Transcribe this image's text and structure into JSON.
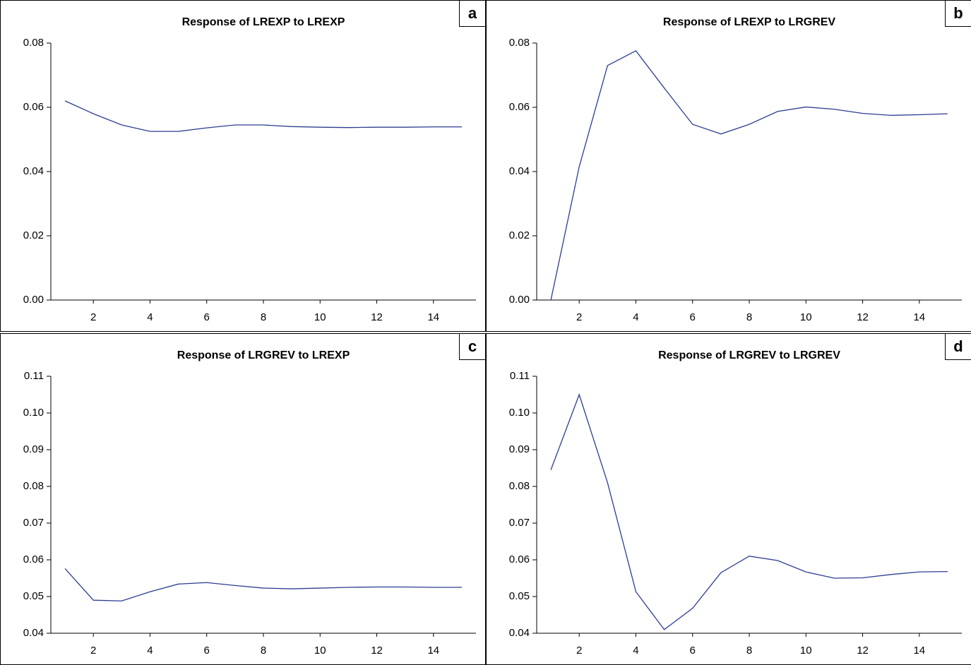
{
  "chart_data": [
    {
      "type": "line",
      "title": "Response of LREXP to LREXP",
      "panel_label": "a",
      "categories": [
        null,
        2,
        null,
        4,
        null,
        6,
        null,
        8,
        null,
        10,
        null,
        12,
        null,
        14,
        null
      ],
      "values": [
        0.062,
        0.058,
        0.0545,
        0.0525,
        0.0525,
        0.0536,
        0.0545,
        0.0545,
        0.054,
        0.0538,
        0.0537,
        0.0538,
        0.0538,
        0.0539,
        0.0539
      ],
      "color": "#2e3d91",
      "ylim": [
        0,
        0.08
      ],
      "yticks": [
        {
          "value": 0,
          "label": "0.00"
        },
        0.02,
        0.04,
        0.06,
        0.08
      ]
    },
    {
      "type": "line",
      "title": "Response of LREXP to LRGREV",
      "panel_label": "b",
      "categories": [
        null,
        2,
        null,
        4,
        null,
        6,
        null,
        8,
        null,
        10,
        null,
        12,
        null,
        14,
        null
      ],
      "values": [
        0,
        0.0415,
        0.073,
        0.0776,
        0.066,
        0.0547,
        0.0517,
        0.0547,
        0.0587,
        0.0601,
        0.0594,
        0.0581,
        0.0575,
        0.0577,
        0.058
      ],
      "color": "#2e3d91",
      "ylim": [
        0,
        0.08
      ],
      "yticks": [
        {
          "value": 0,
          "label": "0.00"
        },
        0.02,
        0.04,
        0.06,
        0.08
      ]
    },
    {
      "type": "line",
      "title": "Response of LRGREV to LREXP",
      "panel_label": "c",
      "categories": [
        null,
        2,
        null,
        4,
        null,
        6,
        null,
        8,
        null,
        10,
        null,
        12,
        null,
        14,
        null
      ],
      "values": [
        0.0576,
        0.049,
        0.0488,
        0.0513,
        0.0534,
        0.0538,
        0.053,
        0.0523,
        0.0521,
        0.0523,
        0.0525,
        0.0526,
        0.0526,
        0.0525,
        0.0525
      ],
      "color": "#2e3d91",
      "ylim": [
        0.04,
        0.11
      ],
      "yticks": [
        0.04,
        0.05,
        0.06,
        0.07,
        0.08,
        0.09,
        {
          "value": 0.1,
          "label": "0.10"
        },
        0.11
      ]
    },
    {
      "type": "line",
      "title": "Response of LRGREV to LRGREV",
      "panel_label": "d",
      "categories": [
        null,
        2,
        null,
        4,
        null,
        6,
        null,
        8,
        null,
        10,
        null,
        12,
        null,
        14,
        null
      ],
      "values": [
        0.0845,
        0.105,
        0.081,
        0.0513,
        0.041,
        0.0468,
        0.0565,
        0.061,
        0.0598,
        0.0567,
        0.055,
        0.0551,
        0.056,
        0.0567,
        0.0568
      ],
      "color": "#2e3d91",
      "ylim": [
        0.04,
        0.11
      ],
      "yticks": [
        0.04,
        0.05,
        0.06,
        0.07,
        0.08,
        0.09,
        {
          "value": 0.1,
          "label": "0.10"
        },
        0.11
      ]
    }
  ]
}
